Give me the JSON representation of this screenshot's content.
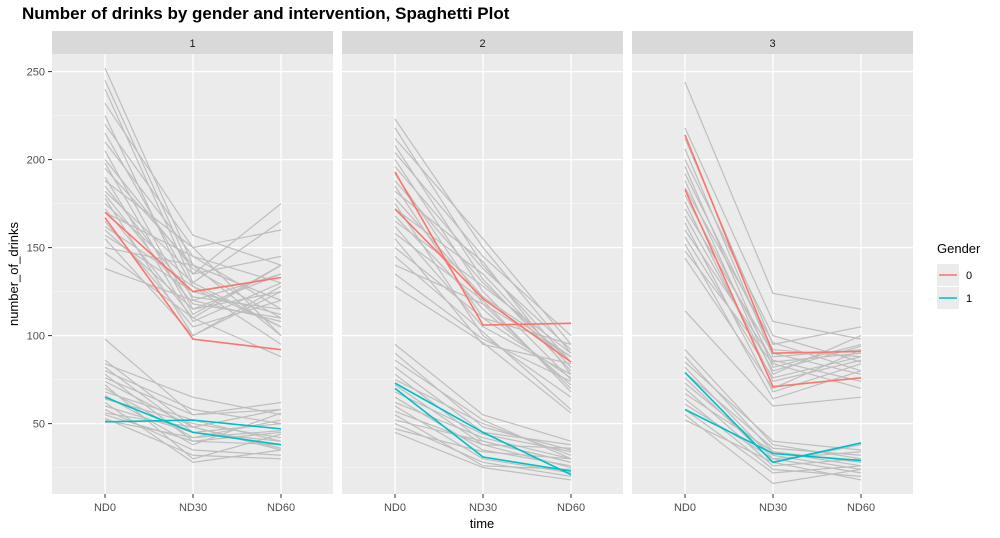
{
  "chart_data": {
    "type": "line",
    "title": "Number of drinks by gender and intervention, Spaghetti Plot",
    "xlabel": "time",
    "ylabel": "number_of_drinks",
    "categories": [
      "ND0",
      "ND30",
      "ND60"
    ],
    "ylim": [
      10,
      260
    ],
    "yticks": [
      50,
      100,
      150,
      200,
      250
    ],
    "grid": true,
    "legend": {
      "title": "Gender",
      "placement": "right",
      "entries": [
        {
          "label": "0",
          "color": "#F8766D"
        },
        {
          "label": "1",
          "color": "#00BFC4"
        }
      ]
    },
    "background_color": "#BEBEBE",
    "panels": [
      {
        "label": "1",
        "series": [
          {
            "gender": "0",
            "values": [
              170,
              125,
              133
            ]
          },
          {
            "gender": "0",
            "values": [
              167,
              98,
              92
            ]
          },
          {
            "gender": "1",
            "values": [
              65,
              45,
              38
            ]
          },
          {
            "gender": "1",
            "values": [
              51,
              52,
              47
            ]
          }
        ],
        "background_lines": [
          [
            252,
            140,
            120
          ],
          [
            245,
            135,
            175
          ],
          [
            240,
            130,
            165
          ],
          [
            232,
            157,
            140
          ],
          [
            225,
            120,
            135
          ],
          [
            220,
            150,
            160
          ],
          [
            215,
            128,
            105
          ],
          [
            210,
            145,
            130
          ],
          [
            205,
            115,
            125
          ],
          [
            200,
            138,
            110
          ],
          [
            198,
            112,
            140
          ],
          [
            195,
            140,
            120
          ],
          [
            190,
            108,
            130
          ],
          [
            188,
            150,
            100
          ],
          [
            185,
            122,
            115
          ],
          [
            182,
            135,
            145
          ],
          [
            180,
            118,
            110
          ],
          [
            178,
            100,
            125
          ],
          [
            175,
            130,
            105
          ],
          [
            172,
            110,
            140
          ],
          [
            170,
            145,
            115
          ],
          [
            165,
            105,
            120
          ],
          [
            162,
            128,
            95
          ],
          [
            160,
            115,
            135
          ],
          [
            157,
            125,
            112
          ],
          [
            155,
            100,
            128
          ],
          [
            150,
            140,
            100
          ],
          [
            147,
            110,
            88
          ],
          [
            138,
            120,
            108
          ],
          [
            98,
            55,
            58
          ],
          [
            86,
            48,
            36
          ],
          [
            84,
            65,
            55
          ],
          [
            82,
            45,
            40
          ],
          [
            80,
            58,
            50
          ],
          [
            78,
            40,
            45
          ],
          [
            76,
            55,
            62
          ],
          [
            74,
            48,
            35
          ],
          [
            72,
            30,
            44
          ],
          [
            70,
            42,
            52
          ],
          [
            68,
            52,
            40
          ],
          [
            66,
            38,
            56
          ],
          [
            64,
            50,
            42
          ],
          [
            62,
            28,
            35
          ],
          [
            60,
            45,
            50
          ],
          [
            58,
            35,
            32
          ],
          [
            56,
            48,
            58
          ],
          [
            55,
            40,
            38
          ],
          [
            53,
            32,
            30
          ],
          [
            52,
            42,
            46
          ]
        ]
      },
      {
        "label": "2",
        "series": [
          {
            "gender": "0",
            "values": [
              193,
              106,
              107
            ]
          },
          {
            "gender": "0",
            "values": [
              172,
              121,
              85
            ]
          },
          {
            "gender": "1",
            "values": [
              73,
              45,
              21
            ]
          },
          {
            "gender": "1",
            "values": [
              70,
              31,
              23
            ]
          }
        ],
        "background_lines": [
          [
            223,
            150,
            90
          ],
          [
            218,
            140,
            85
          ],
          [
            212,
            155,
            95
          ],
          [
            208,
            132,
            80
          ],
          [
            204,
            145,
            100
          ],
          [
            200,
            125,
            75
          ],
          [
            196,
            138,
            92
          ],
          [
            192,
            118,
            70
          ],
          [
            188,
            130,
            85
          ],
          [
            185,
            110,
            95
          ],
          [
            182,
            142,
            78
          ],
          [
            178,
            122,
            88
          ],
          [
            175,
            100,
            65
          ],
          [
            172,
            135,
            82
          ],
          [
            168,
            115,
            72
          ],
          [
            165,
            128,
            90
          ],
          [
            162,
            105,
            78
          ],
          [
            158,
            120,
            68
          ],
          [
            155,
            95,
            84
          ],
          [
            150,
            110,
            76
          ],
          [
            145,
            102,
            58
          ],
          [
            140,
            118,
            88
          ],
          [
            135,
            98,
            74
          ],
          [
            128,
            96,
            56
          ],
          [
            95,
            55,
            40
          ],
          [
            90,
            48,
            35
          ],
          [
            86,
            52,
            30
          ],
          [
            82,
            45,
            38
          ],
          [
            78,
            40,
            28
          ],
          [
            75,
            50,
            32
          ],
          [
            72,
            38,
            25
          ],
          [
            68,
            44,
            34
          ],
          [
            65,
            35,
            26
          ],
          [
            62,
            42,
            30
          ],
          [
            60,
            30,
            22
          ],
          [
            57,
            38,
            36
          ],
          [
            55,
            26,
            24
          ],
          [
            52,
            40,
            28
          ],
          [
            50,
            28,
            20
          ],
          [
            47,
            34,
            30
          ],
          [
            45,
            25,
            18
          ]
        ]
      },
      {
        "label": "3",
        "series": [
          {
            "gender": "0",
            "values": [
              214,
              90,
              91
            ]
          },
          {
            "gender": "0",
            "values": [
              183,
              71,
              76
            ]
          },
          {
            "gender": "1",
            "values": [
              79,
              28,
              39
            ]
          },
          {
            "gender": "1",
            "values": [
              58,
              33,
              29
            ]
          }
        ],
        "background_lines": [
          [
            244,
            124,
            115
          ],
          [
            218,
            108,
            98
          ],
          [
            212,
            95,
            105
          ],
          [
            206,
            88,
            92
          ],
          [
            200,
            100,
            85
          ],
          [
            196,
            82,
            95
          ],
          [
            192,
            92,
            88
          ],
          [
            188,
            78,
            100
          ],
          [
            184,
            96,
            80
          ],
          [
            180,
            85,
            90
          ],
          [
            176,
            74,
            86
          ],
          [
            172,
            90,
            78
          ],
          [
            168,
            80,
            94
          ],
          [
            164,
            68,
            84
          ],
          [
            160,
            86,
            74
          ],
          [
            156,
            76,
            88
          ],
          [
            152,
            64,
            80
          ],
          [
            148,
            84,
            70
          ],
          [
            144,
            70,
            92
          ],
          [
            114,
            60,
            65
          ],
          [
            92,
            38,
            30
          ],
          [
            88,
            34,
            26
          ],
          [
            85,
            40,
            35
          ],
          [
            82,
            30,
            22
          ],
          [
            79,
            36,
            32
          ],
          [
            76,
            28,
            38
          ],
          [
            73,
            32,
            24
          ],
          [
            70,
            26,
            30
          ],
          [
            67,
            34,
            28
          ],
          [
            64,
            24,
            20
          ],
          [
            61,
            30,
            34
          ],
          [
            58,
            22,
            26
          ],
          [
            55,
            16,
            24
          ],
          [
            52,
            28,
            18
          ]
        ]
      }
    ]
  }
}
